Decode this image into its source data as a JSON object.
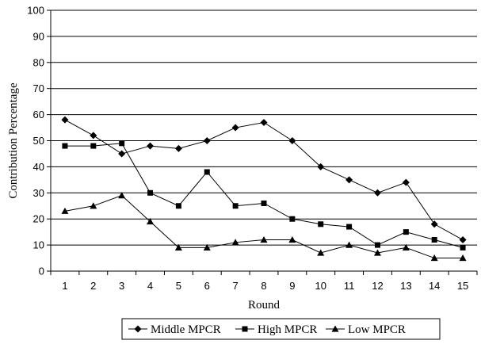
{
  "chart_data": {
    "type": "line",
    "xlabel": "Round",
    "ylabel": "Contribution Percentage",
    "ylim": [
      0,
      100
    ],
    "y_ticks": [
      "0",
      "10",
      "20",
      "30",
      "40",
      "50",
      "60",
      "70",
      "80",
      "90",
      "100"
    ],
    "categories": [
      "1",
      "2",
      "3",
      "4",
      "5",
      "6",
      "7",
      "8",
      "9",
      "10",
      "11",
      "12",
      "13",
      "14",
      "15"
    ],
    "grid": "horizontal",
    "legend_position": "bottom",
    "series": [
      {
        "name": "Middle MPCR",
        "marker": "diamond",
        "values": [
          58,
          52,
          45,
          48,
          47,
          50,
          55,
          57,
          50,
          40,
          35,
          30,
          34,
          18,
          12
        ]
      },
      {
        "name": "High MPCR",
        "marker": "square",
        "values": [
          48,
          48,
          49,
          30,
          25,
          38,
          25,
          26,
          20,
          18,
          17,
          10,
          15,
          12,
          9
        ]
      },
      {
        "name": "Low MPCR",
        "marker": "triangle",
        "values": [
          23,
          25,
          29,
          19,
          9,
          9,
          11,
          12,
          12,
          7,
          10,
          7,
          9,
          5,
          5
        ]
      }
    ]
  }
}
